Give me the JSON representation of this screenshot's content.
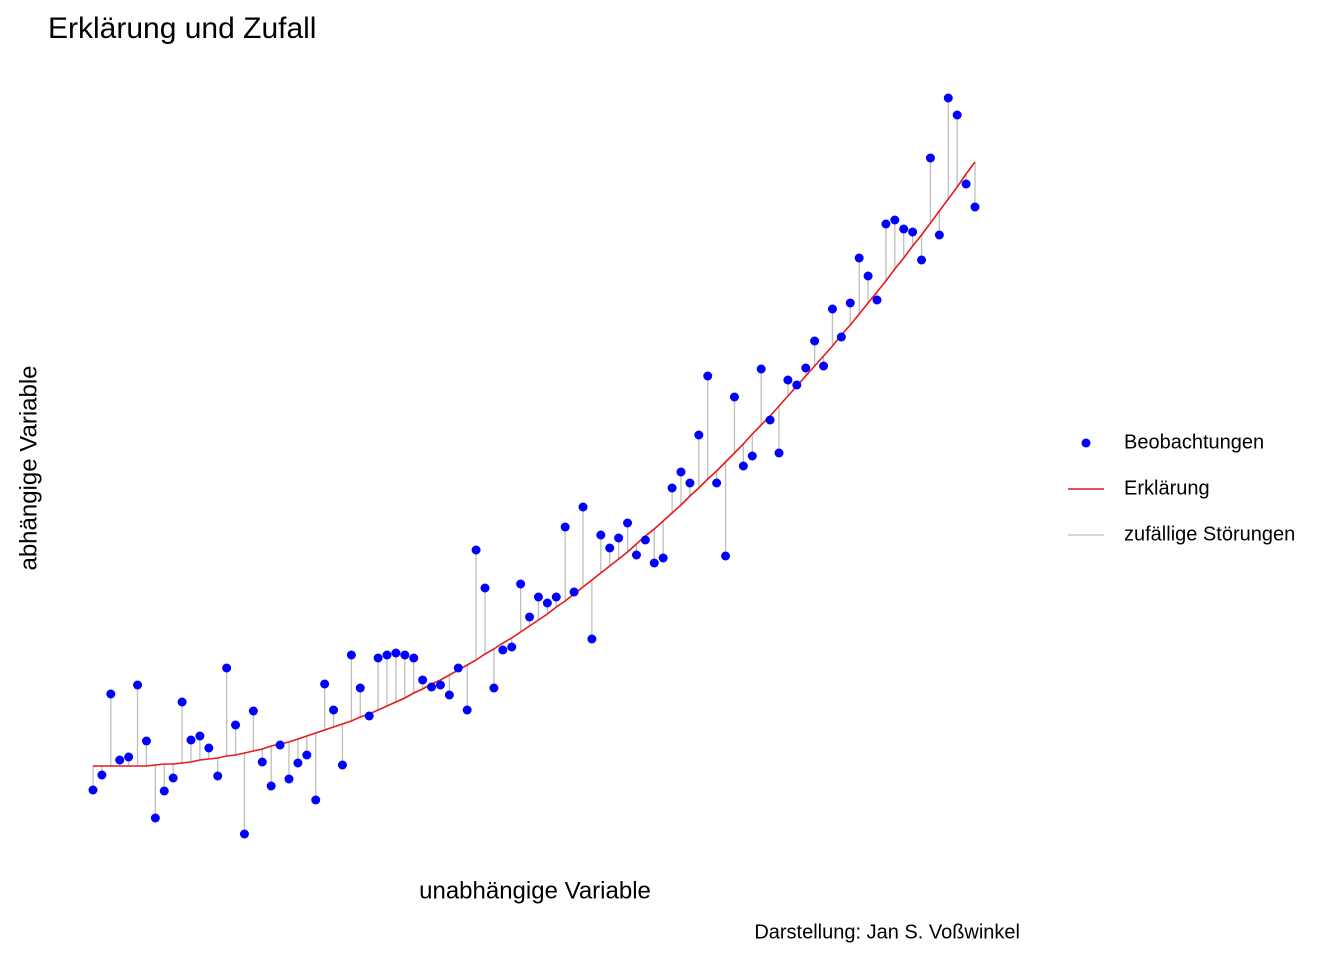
{
  "chart_data": {
    "type": "scatter",
    "title": "Erklärung und Zufall",
    "xlabel": "unabhängige Variable",
    "ylabel": "abhängige Variable",
    "caption": "Darstellung: Jan S. Voßwinkel",
    "legend": "right",
    "xlim": [
      1,
      100
    ],
    "ylim": [
      0,
      80
    ],
    "x": [
      1,
      2,
      3,
      4,
      5,
      6,
      7,
      8,
      9,
      10,
      11,
      12,
      13,
      14,
      15,
      16,
      17,
      18,
      19,
      20,
      21,
      22,
      23,
      24,
      25,
      26,
      27,
      28,
      29,
      30,
      31,
      32,
      33,
      34,
      35,
      36,
      37,
      38,
      39,
      40,
      41,
      42,
      43,
      44,
      45,
      46,
      47,
      48,
      49,
      50,
      51,
      52,
      53,
      54,
      55,
      56,
      57,
      58,
      59,
      60,
      61,
      62,
      63,
      64,
      65,
      66,
      67,
      68,
      69,
      70,
      71,
      72,
      73,
      74,
      75,
      76,
      77,
      78,
      79,
      80,
      81,
      82,
      83,
      84,
      85,
      86,
      87,
      88,
      89,
      90,
      91,
      92,
      93,
      94,
      95,
      96,
      97,
      98,
      99,
      100
    ],
    "series": [
      {
        "name": "Beobachtungen",
        "color": "#0000ff",
        "values": [
          7.0,
          8.5,
          16.6,
          10.0,
          10.3,
          17.5,
          11.9,
          4.2,
          6.9,
          8.2,
          15.8,
          12.0,
          12.4,
          11.2,
          8.4,
          19.2,
          13.5,
          2.6,
          14.9,
          9.8,
          7.4,
          11.5,
          8.1,
          9.7,
          10.5,
          6.0,
          17.6,
          15.0,
          9.5,
          20.5,
          17.2,
          14.4,
          20.2,
          20.5,
          20.7,
          20.5,
          20.2,
          18.0,
          17.3,
          17.5,
          16.5,
          19.2,
          15.0,
          31.0,
          27.2,
          17.2,
          21.0,
          21.3,
          27.6,
          24.3,
          26.3,
          25.7,
          26.3,
          33.3,
          26.8,
          35.3,
          22.1,
          32.5,
          31.2,
          32.2,
          33.7,
          30.5,
          32.0,
          29.7,
          30.2,
          37.2,
          38.8,
          37.7,
          42.5,
          48.4,
          37.7,
          30.4,
          46.3,
          39.4,
          40.4,
          49.1,
          44.0,
          40.7,
          48.0,
          47.5,
          49.2,
          51.9,
          49.4,
          55.1,
          52.3,
          55.7,
          60.2,
          58.4,
          56.0,
          63.6,
          64.0,
          63.1,
          62.8,
          60.0,
          70.2,
          62.5,
          76.2,
          74.5,
          67.6,
          65.3
        ]
      },
      {
        "name": "Erklärung",
        "color": "#e41a1c",
        "values": [
          9.4,
          9.4,
          9.4,
          9.4,
          9.4,
          9.4,
          9.4,
          9.5,
          9.6,
          9.6,
          9.7,
          9.8,
          10.0,
          10.1,
          10.2,
          10.4,
          10.5,
          10.7,
          10.9,
          11.1,
          11.4,
          11.6,
          11.8,
          12.1,
          12.4,
          12.7,
          13.0,
          13.3,
          13.6,
          13.9,
          14.3,
          14.6,
          15.0,
          15.4,
          15.8,
          16.2,
          16.7,
          17.1,
          17.6,
          18.0,
          18.5,
          19.0,
          19.5,
          20.0,
          20.6,
          21.1,
          21.7,
          22.2,
          22.8,
          23.4,
          24.0,
          24.6,
          25.3,
          25.9,
          26.6,
          27.3,
          28.0,
          28.7,
          29.4,
          30.1,
          30.8,
          31.6,
          32.4,
          33.1,
          33.9,
          34.7,
          35.5,
          36.4,
          37.2,
          38.1,
          38.9,
          39.8,
          40.7,
          41.6,
          42.6,
          43.5,
          44.4,
          45.4,
          46.4,
          47.4,
          48.4,
          49.4,
          50.4,
          51.4,
          52.5,
          53.5,
          54.6,
          55.7,
          56.8,
          57.9,
          59.1,
          60.2,
          61.4,
          62.5,
          63.7,
          64.9,
          66.1,
          67.3,
          68.6,
          69.8
        ]
      },
      {
        "name": "zufällige Störungen",
        "color": "#bebebe"
      }
    ]
  }
}
